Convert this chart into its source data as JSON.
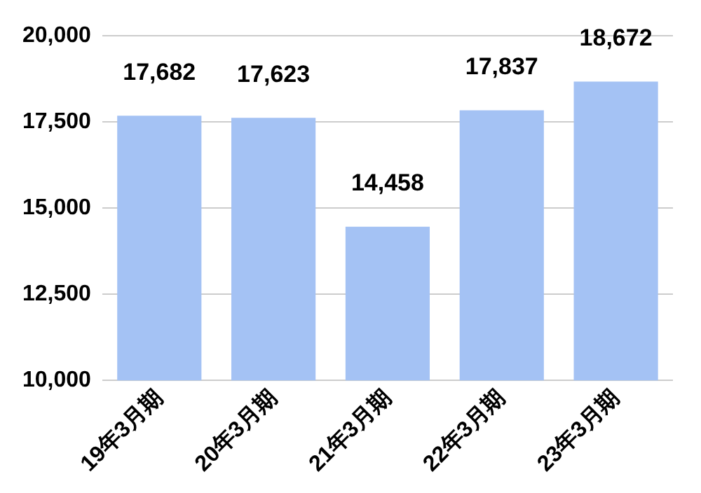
{
  "chart_data": {
    "type": "bar",
    "categories": [
      "19年3月期",
      "20年3月期",
      "21年3月期",
      "22年3月期",
      "23年3月期"
    ],
    "values": [
      17682,
      17623,
      14458,
      17837,
      18672
    ],
    "color": "#a4c2f4",
    "value_labels": [
      "17,682",
      "17,623",
      "14,458",
      "17,837",
      "18,672"
    ],
    "ylim": [
      10000,
      20000
    ],
    "yticks": [
      {
        "value": 10000,
        "label": "10,000"
      },
      {
        "value": 12500,
        "label": "12,500"
      },
      {
        "value": 15000,
        "label": "15,000"
      },
      {
        "value": 17500,
        "label": "17,500"
      },
      {
        "value": 20000,
        "label": "20,000"
      }
    ],
    "grid": "y"
  }
}
